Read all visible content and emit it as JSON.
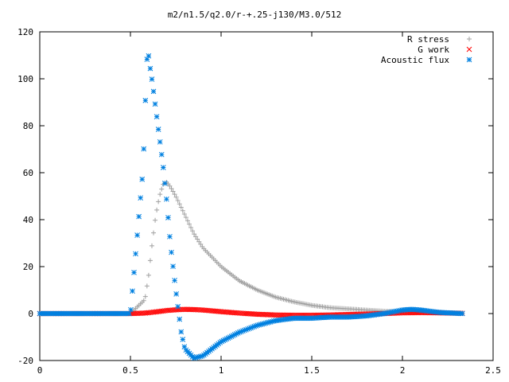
{
  "chart_data": {
    "type": "scatter",
    "title": "m2/n1.5/q2.0/r-+.25-j130/M3.0/512",
    "xlabel": "",
    "ylabel": "",
    "xlim": [
      0,
      2.5
    ],
    "ylim": [
      -20,
      120
    ],
    "x_ticks": [
      0,
      0.5,
      1,
      1.5,
      2,
      2.5
    ],
    "x_tick_labels": [
      "0",
      "0.5",
      "1",
      "1.5",
      "2",
      "2.5"
    ],
    "y_ticks": [
      -20,
      0,
      20,
      40,
      60,
      80,
      100,
      120
    ],
    "y_tick_labels": [
      "-20",
      "0",
      "20",
      "40",
      "60",
      "80",
      "100",
      "120"
    ],
    "grid": false,
    "legend_position": "top-right",
    "series": [
      {
        "name": "R stress",
        "marker": "plus",
        "color": "#a0a0a0",
        "x": [
          0,
          0.1,
          0.2,
          0.3,
          0.4,
          0.5,
          0.58,
          0.6,
          0.62,
          0.64,
          0.66,
          0.68,
          0.7,
          0.72,
          0.75,
          0.8,
          0.85,
          0.9,
          1.0,
          1.1,
          1.2,
          1.3,
          1.4,
          1.5,
          1.6,
          1.7,
          1.8,
          1.9,
          2.0,
          2.1,
          2.2,
          2.33
        ],
        "y": [
          0,
          0,
          0,
          0,
          0,
          0,
          6,
          16,
          30,
          42,
          50,
          55,
          56,
          54,
          50,
          42,
          34,
          28,
          20,
          14,
          10,
          7,
          5,
          3.5,
          2.5,
          2,
          1.5,
          1,
          0.8,
          0.5,
          0.3,
          0.2
        ]
      },
      {
        "name": "G work",
        "marker": "cross",
        "color": "#ff0000",
        "x": [
          0,
          0.1,
          0.2,
          0.3,
          0.4,
          0.5,
          0.58,
          0.65,
          0.7,
          0.75,
          0.8,
          0.85,
          0.9,
          1.0,
          1.1,
          1.2,
          1.3,
          1.4,
          1.5,
          1.6,
          1.7,
          1.8,
          1.9,
          2.0,
          2.1,
          2.2,
          2.33
        ],
        "y": [
          0,
          0,
          0,
          0,
          0,
          0,
          0.2,
          0.8,
          1.3,
          1.6,
          1.8,
          1.7,
          1.5,
          0.8,
          0.2,
          -0.3,
          -0.6,
          -0.7,
          -0.7,
          -0.6,
          -0.4,
          -0.2,
          0,
          0.3,
          0.4,
          0.3,
          0.1
        ]
      },
      {
        "name": "Acoustic flux",
        "marker": "star",
        "color": "#0080e0",
        "x": [
          0,
          0.1,
          0.2,
          0.3,
          0.4,
          0.5,
          0.57,
          0.59,
          0.6,
          0.61,
          0.62,
          0.63,
          0.64,
          0.65,
          0.66,
          0.68,
          0.7,
          0.72,
          0.75,
          0.78,
          0.8,
          0.85,
          0.9,
          0.95,
          1.0,
          1.1,
          1.2,
          1.3,
          1.4,
          1.5,
          1.6,
          1.7,
          1.8,
          1.9,
          2.0,
          2.05,
          2.1,
          2.2,
          2.33
        ],
        "y": [
          0,
          0,
          0,
          0,
          0,
          0,
          62,
          108,
          110,
          104,
          99,
          93,
          87,
          81,
          75,
          63,
          48,
          30,
          10,
          -8,
          -15,
          -19,
          -18,
          -15,
          -12,
          -8,
          -5,
          -3,
          -2,
          -2,
          -1.5,
          -1.5,
          -1,
          0,
          1.5,
          1.8,
          1.5,
          0.5,
          0
        ]
      }
    ]
  }
}
